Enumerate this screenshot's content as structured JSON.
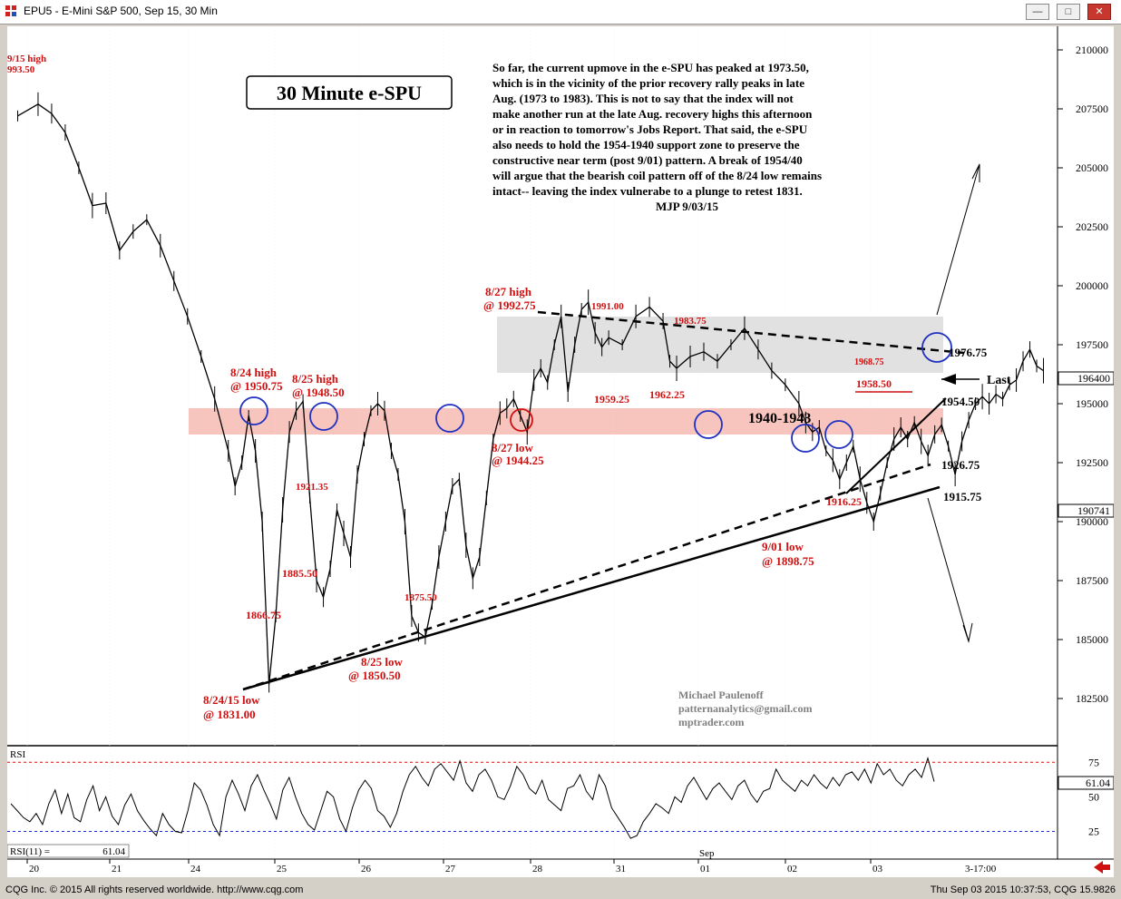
{
  "window": {
    "title": "EPU5 - E-Mini S&P 500, Sep 15, 30 Min",
    "buttons": [
      "minimize",
      "maximize",
      "close"
    ]
  },
  "status": {
    "copyright": "CQG Inc. © 2015 All rights reserved worldwide. http://www.cqg.com",
    "timestamp": "Thu Sep 03 2015 10:37:53, CQG 15.9826"
  },
  "chart_data": {
    "type": "line",
    "title": "30 Minute  e-SPU",
    "commentary": [
      "So far, the current upmove in the e-SPU has peaked at 1973.50,",
      "which is in the vicinity of the prior recovery rally peaks in late",
      "Aug. (1973 to 1983).  This is not to say that the index will not",
      "make another run at the late Aug. recovery highs this afternoon",
      "or in reaction to tomorrow's Jobs Report. That said, the e-SPU",
      "also needs to hold the 1954-1940 support zone to preserve the",
      "constructive near term (post 9/01) pattern. A break of 1954/40",
      "will argue that the bearish coil pattern off of the 8/24 low remains",
      "intact-- leaving the index vulnerabe to a plunge to retest 1831."
    ],
    "signature": "MJP 9/03/15",
    "credits": [
      "Michael Paulenoff",
      "patternanalytics@gmail.com",
      "mptrader.com"
    ],
    "y_axis": {
      "range": [
        181000,
        211000
      ],
      "ticks": [
        "210000",
        "207500",
        "205000",
        "202500",
        "200000",
        "197500",
        "195000",
        "192500",
        "190000",
        "187500",
        "185000",
        "182500"
      ],
      "last_price": "196400",
      "marker_price": "190741"
    },
    "x_axis": {
      "labels": [
        "20",
        "21",
        "24",
        "25",
        "26",
        "27",
        "28",
        "31",
        "01",
        "02",
        "03"
      ],
      "month_label": "Sep",
      "right_label": "3-17:00"
    },
    "price_series": [
      [
        1,
        207200
      ],
      [
        4,
        207700
      ],
      [
        6,
        207300
      ],
      [
        8,
        206500
      ],
      [
        10,
        205000
      ],
      [
        12,
        203400
      ],
      [
        14,
        203500
      ],
      [
        16,
        201500
      ],
      [
        18,
        202300
      ],
      [
        20,
        202800
      ],
      [
        22,
        201700
      ],
      [
        24,
        200200
      ],
      [
        26,
        198700
      ],
      [
        28,
        197000
      ],
      [
        30,
        195200
      ],
      [
        32,
        193000
      ],
      [
        33,
        191500
      ],
      [
        34,
        192500
      ],
      [
        35,
        194500
      ],
      [
        36,
        193000
      ],
      [
        37,
        190000
      ],
      [
        38,
        183100
      ],
      [
        39,
        186000
      ],
      [
        40,
        190500
      ],
      [
        41,
        193800
      ],
      [
        42,
        194700
      ],
      [
        43,
        195100
      ],
      [
        44,
        191000
      ],
      [
        45,
        187500
      ],
      [
        46,
        186800
      ],
      [
        47,
        188000
      ],
      [
        48,
        190500
      ],
      [
        49,
        189500
      ],
      [
        50,
        188500
      ],
      [
        51,
        192000
      ],
      [
        52,
        193500
      ],
      [
        53,
        194700
      ],
      [
        54,
        195000
      ],
      [
        55,
        194700
      ],
      [
        56,
        193000
      ],
      [
        57,
        192000
      ],
      [
        58,
        190000
      ],
      [
        59,
        186000
      ],
      [
        60,
        185300
      ],
      [
        61,
        185100
      ],
      [
        62,
        186500
      ],
      [
        63,
        188500
      ],
      [
        64,
        190000
      ],
      [
        65,
        191500
      ],
      [
        66,
        191800
      ],
      [
        67,
        189000
      ],
      [
        68,
        187600
      ],
      [
        69,
        188500
      ],
      [
        70,
        191000
      ],
      [
        71,
        193500
      ],
      [
        72,
        194600
      ],
      [
        73,
        194800
      ],
      [
        74,
        195200
      ],
      [
        75,
        194500
      ],
      [
        76,
        193800
      ],
      [
        77,
        196000
      ],
      [
        78,
        196500
      ],
      [
        79,
        195900
      ],
      [
        80,
        197500
      ],
      [
        81,
        198700
      ],
      [
        82,
        195500
      ],
      [
        83,
        197500
      ],
      [
        84,
        199000
      ],
      [
        85,
        199300
      ],
      [
        86,
        198000
      ],
      [
        87,
        197400
      ],
      [
        88,
        197800
      ],
      [
        90,
        197500
      ],
      [
        92,
        198700
      ],
      [
        94,
        199100
      ],
      [
        96,
        198500
      ],
      [
        97,
        196800
      ],
      [
        98,
        196500
      ],
      [
        100,
        197000
      ],
      [
        102,
        197200
      ],
      [
        104,
        196800
      ],
      [
        106,
        197500
      ],
      [
        108,
        198200
      ],
      [
        110,
        197300
      ],
      [
        112,
        196400
      ],
      [
        114,
        195800
      ],
      [
        116,
        195000
      ],
      [
        117,
        194200
      ],
      [
        118,
        193800
      ],
      [
        119,
        194000
      ],
      [
        120,
        193000
      ],
      [
        121,
        192600
      ],
      [
        122,
        191800
      ],
      [
        123,
        192500
      ],
      [
        124,
        193200
      ],
      [
        125,
        191800
      ],
      [
        126,
        190800
      ],
      [
        127,
        190000
      ],
      [
        128,
        191200
      ],
      [
        129,
        192500
      ],
      [
        130,
        193500
      ],
      [
        131,
        194000
      ],
      [
        132,
        193500
      ],
      [
        133,
        194200
      ],
      [
        134,
        193400
      ],
      [
        135,
        192800
      ],
      [
        136,
        193700
      ],
      [
        137,
        194100
      ],
      [
        138,
        193200
      ],
      [
        139,
        192000
      ],
      [
        140,
        193400
      ],
      [
        141,
        194300
      ],
      [
        142,
        195000
      ],
      [
        143,
        195300
      ],
      [
        144,
        195000
      ],
      [
        145,
        195400
      ],
      [
        146,
        195200
      ],
      [
        147,
        195800
      ],
      [
        148,
        196000
      ],
      [
        149,
        196800
      ],
      [
        150,
        197300
      ],
      [
        151,
        196600
      ],
      [
        152,
        196400
      ]
    ],
    "annotations": [
      "9/15 high",
      "993.50",
      "8/24 high",
      "@ 1950.75",
      "8/25 high",
      "@ 1948.50",
      "1921.35",
      "8/27 high",
      "@ 1992.75",
      "1991.00",
      "1983.75",
      "1959.25",
      "1962.25",
      "1940-1943",
      "8/27 low",
      "@ 1944.25",
      "1885.50",
      "1866.75",
      "1875.50",
      "8/25 low",
      "@ 1850.50",
      "8/24/15 low",
      "@ 1831.00",
      "9/01 low",
      "@ 1898.75",
      "1916.25",
      "1958.50",
      "1968.75",
      "1976.75",
      "Last",
      "1954.50",
      "1926.75",
      "1915.75"
    ],
    "rsi": {
      "label": "RSI",
      "period_label": "RSI(11) =",
      "value": "61.04",
      "ticks": [
        "75",
        "50",
        "25"
      ],
      "values": [
        45,
        40,
        35,
        32,
        38,
        30,
        45,
        55,
        38,
        52,
        35,
        32,
        48,
        58,
        40,
        50,
        36,
        30,
        44,
        52,
        40,
        33,
        27,
        22,
        38,
        30,
        25,
        24,
        40,
        60,
        55,
        44,
        30,
        22,
        50,
        62,
        52,
        40,
        58,
        66,
        55,
        45,
        34,
        55,
        64,
        50,
        38,
        30,
        26,
        40,
        54,
        50,
        34,
        25,
        42,
        55,
        62,
        56,
        40,
        36,
        28,
        38,
        54,
        66,
        72,
        64,
        58,
        70,
        74,
        68,
        62,
        76,
        60,
        54,
        66,
        70,
        62,
        50,
        48,
        58,
        72,
        66,
        56,
        52,
        62,
        48,
        44,
        40,
        56,
        58,
        66,
        54,
        48,
        66,
        58,
        42,
        35,
        28,
        20,
        22,
        32,
        38,
        45,
        42,
        38,
        50,
        46,
        58,
        64,
        56,
        48,
        56,
        60,
        54,
        48,
        58,
        62,
        52,
        46,
        54,
        56,
        70,
        62,
        58,
        54,
        62,
        58,
        66,
        60,
        56,
        64,
        58,
        66,
        68,
        62,
        70,
        60,
        74,
        66,
        70,
        62,
        58,
        66,
        70,
        64,
        78,
        61
      ]
    }
  }
}
